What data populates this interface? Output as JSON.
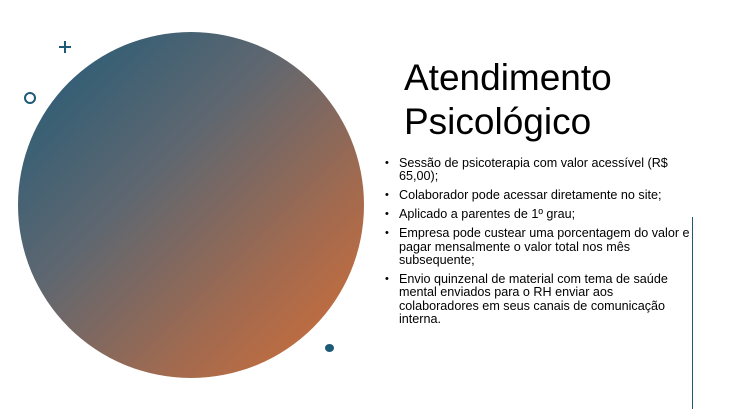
{
  "slide": {
    "title_lines": [
      "Atendimento",
      "Psicológico"
    ],
    "bullet_symbol": "•",
    "bullets": [
      "Sessão de psicoterapia com valor acessível (R$ 65,00);",
      "Colaborador pode acessar diretamente no site;",
      "Aplicado a parentes de 1º grau;",
      "Empresa pode custear uma porcentagem do valor e pagar mensalmente o valor total nos mês subsequente;",
      "Envio quinzenal de material com tema de saúde mental enviados para o RH enviar aos colaboradores em seus canais de comunicação interna."
    ]
  },
  "colors": {
    "accent": "#1e5a78",
    "gradient_start": "#1e5a78",
    "gradient_end": "#d56f35"
  }
}
